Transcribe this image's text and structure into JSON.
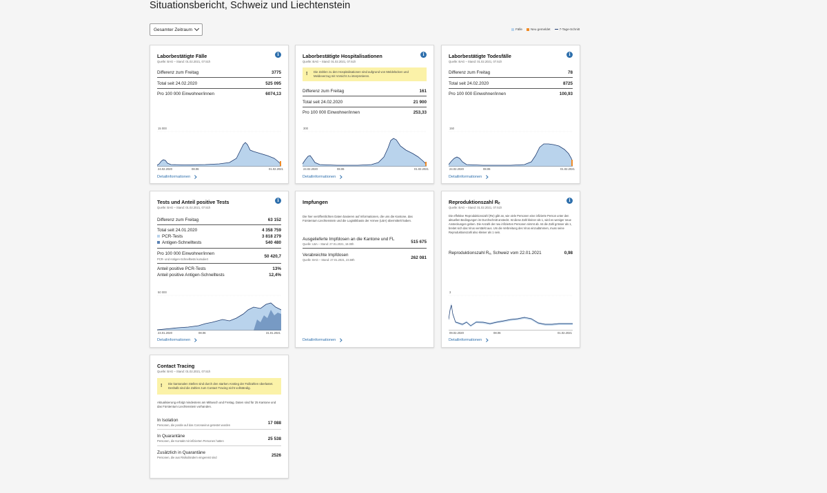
{
  "page": {
    "title": "Situationsbericht, Schweiz und Liechtenstein",
    "period_select": "Gesamter Zeitraum",
    "legend": {
      "faelle": "Fälle",
      "neu": "Neu gemeldet",
      "schnitt": "7-Tage-Schnitt"
    }
  },
  "colors": {
    "accent": "#2e6fac",
    "area": "#b9d3ec",
    "line": "#1d3a6e",
    "new": "#f08a24",
    "warn": "#fbf2a8"
  },
  "cards": {
    "cases": {
      "title": "Laborbestätigte Fälle",
      "source": "Quelle: BAG – Stand: 01.02.2021, 07.51h",
      "rows": [
        {
          "label": "Differenz zum Freitag",
          "value": "3775"
        },
        {
          "label": "Total seit 24.02.2020",
          "value": "525 095"
        },
        {
          "label": "Pro 100 000 Einwohner/innen",
          "value": "6074,13"
        }
      ],
      "chart": {
        "ymax": "15 000",
        "x_start": "24.02.2020",
        "x_mid": "08.06",
        "x_end": "01.02.2021"
      },
      "link": "Detailinformationen"
    },
    "hosp": {
      "title": "Laborbestätigte Hospitalisationen",
      "source": "Quelle: BAG – Stand: 01.02.2021, 07.51h",
      "warning": "Die Zahlen zu den Hospitalisationen sind aufgrund von Meldelücken und Meldeverzug mit Vorsicht zu interpretieren.",
      "rows": [
        {
          "label": "Differenz zum Freitag",
          "value": "161"
        },
        {
          "label": "Total seit 24.02.2020",
          "value": "21 900"
        },
        {
          "label": "Pro 100 000 Einwohner/innen",
          "value": "253,33"
        }
      ],
      "chart": {
        "ymax": "300",
        "x_start": "24.02.2020",
        "x_mid": "08.06",
        "x_end": "01.02.2021"
      },
      "link": "Detailinformationen"
    },
    "deaths": {
      "title": "Laborbestätigte Todesfälle",
      "source": "Quelle: BAG – Stand: 01.02.2021, 07.51h",
      "rows": [
        {
          "label": "Differenz zum Freitag",
          "value": "78"
        },
        {
          "label": "Total seit 24.02.2020",
          "value": "8725"
        },
        {
          "label": "Pro 100 000 Einwohner/innen",
          "value": "100,93"
        }
      ],
      "chart": {
        "ymax": "150",
        "x_start": "24.02.2020",
        "x_mid": "08.06",
        "x_end": "01.02.2021"
      },
      "link": "Detailinformationen"
    },
    "tests": {
      "title": "Tests und Anteil positive Tests",
      "source": "Quelle: BAG – Stand: 01.02.2021, 07.51h",
      "diff": {
        "label": "Differenz zum Freitag",
        "value": "63 152"
      },
      "total": {
        "label": "Total seit 24.01.2020",
        "value": "4 358 759"
      },
      "pcr": {
        "label": "PCR-Tests",
        "value": "3 818 279"
      },
      "antigen": {
        "label": "Antigen-Schnelltests",
        "value": "540 480"
      },
      "per100k": {
        "label": "Pro 100 000 Einwohner/innen",
        "value": "50 420,7",
        "note": "PCR- und Antigen-Schnelltests kumuliert"
      },
      "pos_pcr": {
        "label": "Anteil positive PCR-Tests",
        "value": "13%"
      },
      "pos_ag": {
        "label": "Anteil positive Antigen-Schnelltests",
        "value": "12,4%"
      },
      "chart": {
        "ymax": "50 000",
        "x_start": "24.01.2020",
        "x_mid": "08.06",
        "x_end": "31.01.2021"
      },
      "link": "Detailinformationen"
    },
    "vacc": {
      "title": "Impfungen",
      "text": "Die hier veröffentlichten Daten basieren auf Informationen, die uns die Kantone, das Fürstentum Liechtenstein und die Logistikbasis der Armee (LBA) übermittelt haben.",
      "delivered": {
        "label": "Ausgelieferte Impfdosen an die Kantone und FL",
        "value": "515 675",
        "source": "Quelle: LBA – Stand: 27.01.2021, 18.00h"
      },
      "administered": {
        "label": "Verabreichte Impfdosen",
        "value": "262 081",
        "source": "Quelle: BAG – Stand: 27.01.2021, 23.59h"
      },
      "link": "Detailinformationen"
    },
    "re": {
      "title": "Reproduktionszahl Rₑ",
      "source": "Quelle: BAG – Stand: 01.02.2021, 07.51h",
      "text": "Die effektive Reproduktionszahl (Re) gibt an, wie viele Personen eine infizierte Person unter den aktuellen Bedingungen im Durchschnitt ansteckt. Ist diese Zahl kleiner als 1, wird es weniger neue Ansteckungen geben. Die Anzahl der neu infizierten Personen nimmt ab. Ist die Zahl grösser als 1, breitet sich das Virus verstärkt aus. Um die Verbreitung des Virus einzudämmen, muss seine Reproduktionszahl also kleiner als 1 sein.",
      "value_row": {
        "label": "Reproduktionszahl Rₑ, Schweiz vom 22.01.2021",
        "value": "0,98"
      },
      "chart": {
        "ymax": "3",
        "x_start": "09.02.2020",
        "x_mid": "08.06",
        "x_end": "01.02.2021"
      },
      "link": "Detailinformationen"
    },
    "tracing": {
      "title": "Contact Tracing",
      "source": "Quelle: BAG – Stand: 01.02.2021, 07.51h",
      "warning": "Die kantonalen Stellen sind durch den starken Anstieg der Fallzahlen überlastet. Deshalb sind die Zahlen zum Contact Tracing nicht vollständig.",
      "text": "Aktualisierung erfolgt mindestens am Mittwoch und Freitag. Daten sind für 25 Kantone und das Fürstentum Liechtenstein vorhanden.",
      "isolation": {
        "label": "In Isolation",
        "value": "17 088",
        "note": "Personen, die positiv auf das Coronavirus getestet wurden"
      },
      "quarantine": {
        "label": "In Quarantäne",
        "value": "25 538",
        "note": "Personen, die Kontakt mit infizierten Personen hatten"
      },
      "extra": {
        "label": "Zusätzlich in Quarantäne",
        "value": "2526",
        "note": "Personen, die aus Risikoländern eingereist sind"
      }
    }
  }
}
